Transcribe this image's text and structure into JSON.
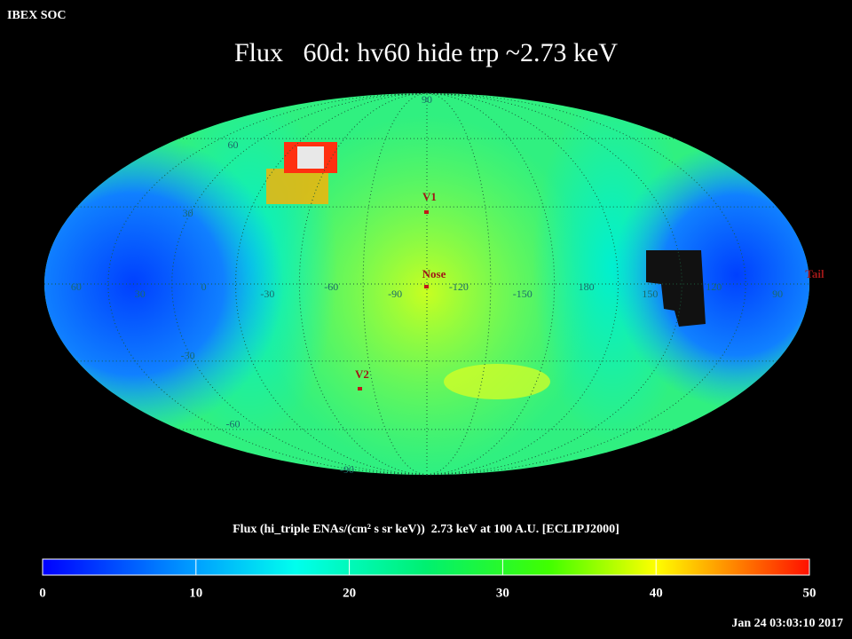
{
  "header": {
    "source": "IBEX SOC",
    "title": "Flux   60d: hv60 hide trp ~2.73 keV",
    "timestamp": "Jan 24 03:03:10 2017"
  },
  "map": {
    "projection": "mollweide",
    "center_longitude": -105,
    "longitude_labels": [
      60,
      30,
      0,
      -30,
      -60,
      -90,
      -120,
      -150,
      180,
      150,
      120,
      90
    ],
    "latitude_labels": [
      90,
      60,
      30,
      -30,
      -60,
      -90
    ],
    "markers": [
      "V1",
      "Nose",
      "V2",
      "Tail"
    ]
  },
  "colorbar": {
    "title": "Flux (hi_triple ENAs/(cm² s sr keV))  2.73 keV at 100 A.U. [ECLIPJ2000]",
    "lim": [
      0,
      50
    ],
    "ticks": [
      0,
      10,
      20,
      30,
      40,
      50
    ]
  }
}
